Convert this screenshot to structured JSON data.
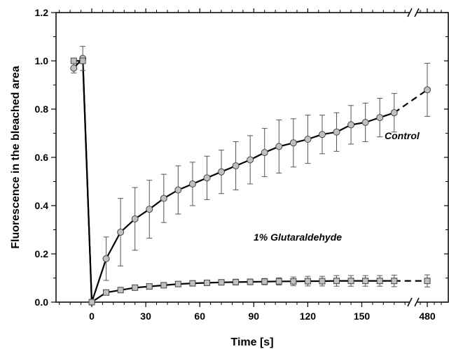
{
  "chart_data": {
    "type": "scatter",
    "xlabel": "Time [s]",
    "ylabel": "Fluorescence in the bleached area",
    "ylim": [
      0.0,
      1.2
    ],
    "x_axis_break": {
      "between": [
        170,
        480
      ]
    },
    "x_ticks": [
      {
        "value": 0,
        "label": "0"
      },
      {
        "value": 30,
        "label": "30"
      },
      {
        "value": 60,
        "label": "60"
      },
      {
        "value": 90,
        "label": "90"
      },
      {
        "value": 120,
        "label": "120"
      },
      {
        "value": 150,
        "label": "150"
      },
      {
        "value": 480,
        "label": "480"
      }
    ],
    "y_ticks": [
      {
        "value": 0.0,
        "label": "0.0"
      },
      {
        "value": 0.2,
        "label": "0.2"
      },
      {
        "value": 0.4,
        "label": "0.4"
      },
      {
        "value": 0.6,
        "label": "0.6"
      },
      {
        "value": 0.8,
        "label": "0.8"
      },
      {
        "value": 1.0,
        "label": "1.0"
      },
      {
        "value": 1.2,
        "label": "1.2"
      }
    ],
    "annotations": [
      {
        "text": "Control",
        "series": "control"
      },
      {
        "text": "1% Glutaraldehyde",
        "series": "glutaraldehyde"
      }
    ],
    "series": [
      {
        "id": "control",
        "marker": "circle",
        "marker_color": "#c0c0c0",
        "points": [
          {
            "x": -10,
            "y": 0.97,
            "err": 0.02
          },
          {
            "x": -5,
            "y": 1.01,
            "err": 0.05
          },
          {
            "x": 0,
            "y": 0.0,
            "err": 0.0
          },
          {
            "x": 8,
            "y": 0.18,
            "err": 0.09
          },
          {
            "x": 16,
            "y": 0.29,
            "err": 0.14
          },
          {
            "x": 24,
            "y": 0.345,
            "err": 0.13
          },
          {
            "x": 32,
            "y": 0.385,
            "err": 0.12
          },
          {
            "x": 40,
            "y": 0.43,
            "err": 0.1
          },
          {
            "x": 48,
            "y": 0.465,
            "err": 0.1
          },
          {
            "x": 56,
            "y": 0.49,
            "err": 0.09
          },
          {
            "x": 64,
            "y": 0.515,
            "err": 0.09
          },
          {
            "x": 72,
            "y": 0.54,
            "err": 0.09
          },
          {
            "x": 80,
            "y": 0.565,
            "err": 0.1
          },
          {
            "x": 88,
            "y": 0.59,
            "err": 0.1
          },
          {
            "x": 96,
            "y": 0.62,
            "err": 0.1
          },
          {
            "x": 104,
            "y": 0.645,
            "err": 0.11
          },
          {
            "x": 112,
            "y": 0.66,
            "err": 0.1
          },
          {
            "x": 120,
            "y": 0.675,
            "err": 0.1
          },
          {
            "x": 128,
            "y": 0.695,
            "err": 0.08
          },
          {
            "x": 136,
            "y": 0.705,
            "err": 0.08
          },
          {
            "x": 144,
            "y": 0.735,
            "err": 0.08
          },
          {
            "x": 152,
            "y": 0.745,
            "err": 0.08
          },
          {
            "x": 160,
            "y": 0.765,
            "err": 0.08
          },
          {
            "x": 168,
            "y": 0.785,
            "err": 0.08
          },
          {
            "x": 480,
            "y": 0.88,
            "err": 0.11
          }
        ]
      },
      {
        "id": "glutaraldehyde",
        "marker": "square",
        "marker_color": "#c0c0c0",
        "points": [
          {
            "x": -10,
            "y": 1.0,
            "err": 0.01
          },
          {
            "x": -5,
            "y": 1.0,
            "err": 0.01
          },
          {
            "x": 0,
            "y": 0.0,
            "err": 0.0
          },
          {
            "x": 8,
            "y": 0.04,
            "err": 0.01
          },
          {
            "x": 16,
            "y": 0.05,
            "err": 0.01
          },
          {
            "x": 24,
            "y": 0.06,
            "err": 0.01
          },
          {
            "x": 32,
            "y": 0.065,
            "err": 0.01
          },
          {
            "x": 40,
            "y": 0.07,
            "err": 0.01
          },
          {
            "x": 48,
            "y": 0.075,
            "err": 0.01
          },
          {
            "x": 56,
            "y": 0.078,
            "err": 0.01
          },
          {
            "x": 64,
            "y": 0.08,
            "err": 0.01
          },
          {
            "x": 72,
            "y": 0.082,
            "err": 0.01
          },
          {
            "x": 80,
            "y": 0.083,
            "err": 0.012
          },
          {
            "x": 88,
            "y": 0.084,
            "err": 0.012
          },
          {
            "x": 96,
            "y": 0.085,
            "err": 0.013
          },
          {
            "x": 104,
            "y": 0.086,
            "err": 0.015
          },
          {
            "x": 112,
            "y": 0.086,
            "err": 0.018
          },
          {
            "x": 120,
            "y": 0.087,
            "err": 0.02
          },
          {
            "x": 128,
            "y": 0.087,
            "err": 0.02
          },
          {
            "x": 136,
            "y": 0.088,
            "err": 0.022
          },
          {
            "x": 144,
            "y": 0.088,
            "err": 0.022
          },
          {
            "x": 152,
            "y": 0.088,
            "err": 0.022
          },
          {
            "x": 160,
            "y": 0.088,
            "err": 0.022
          },
          {
            "x": 168,
            "y": 0.088,
            "err": 0.024
          },
          {
            "x": 480,
            "y": 0.088,
            "err": 0.025
          }
        ]
      }
    ]
  }
}
